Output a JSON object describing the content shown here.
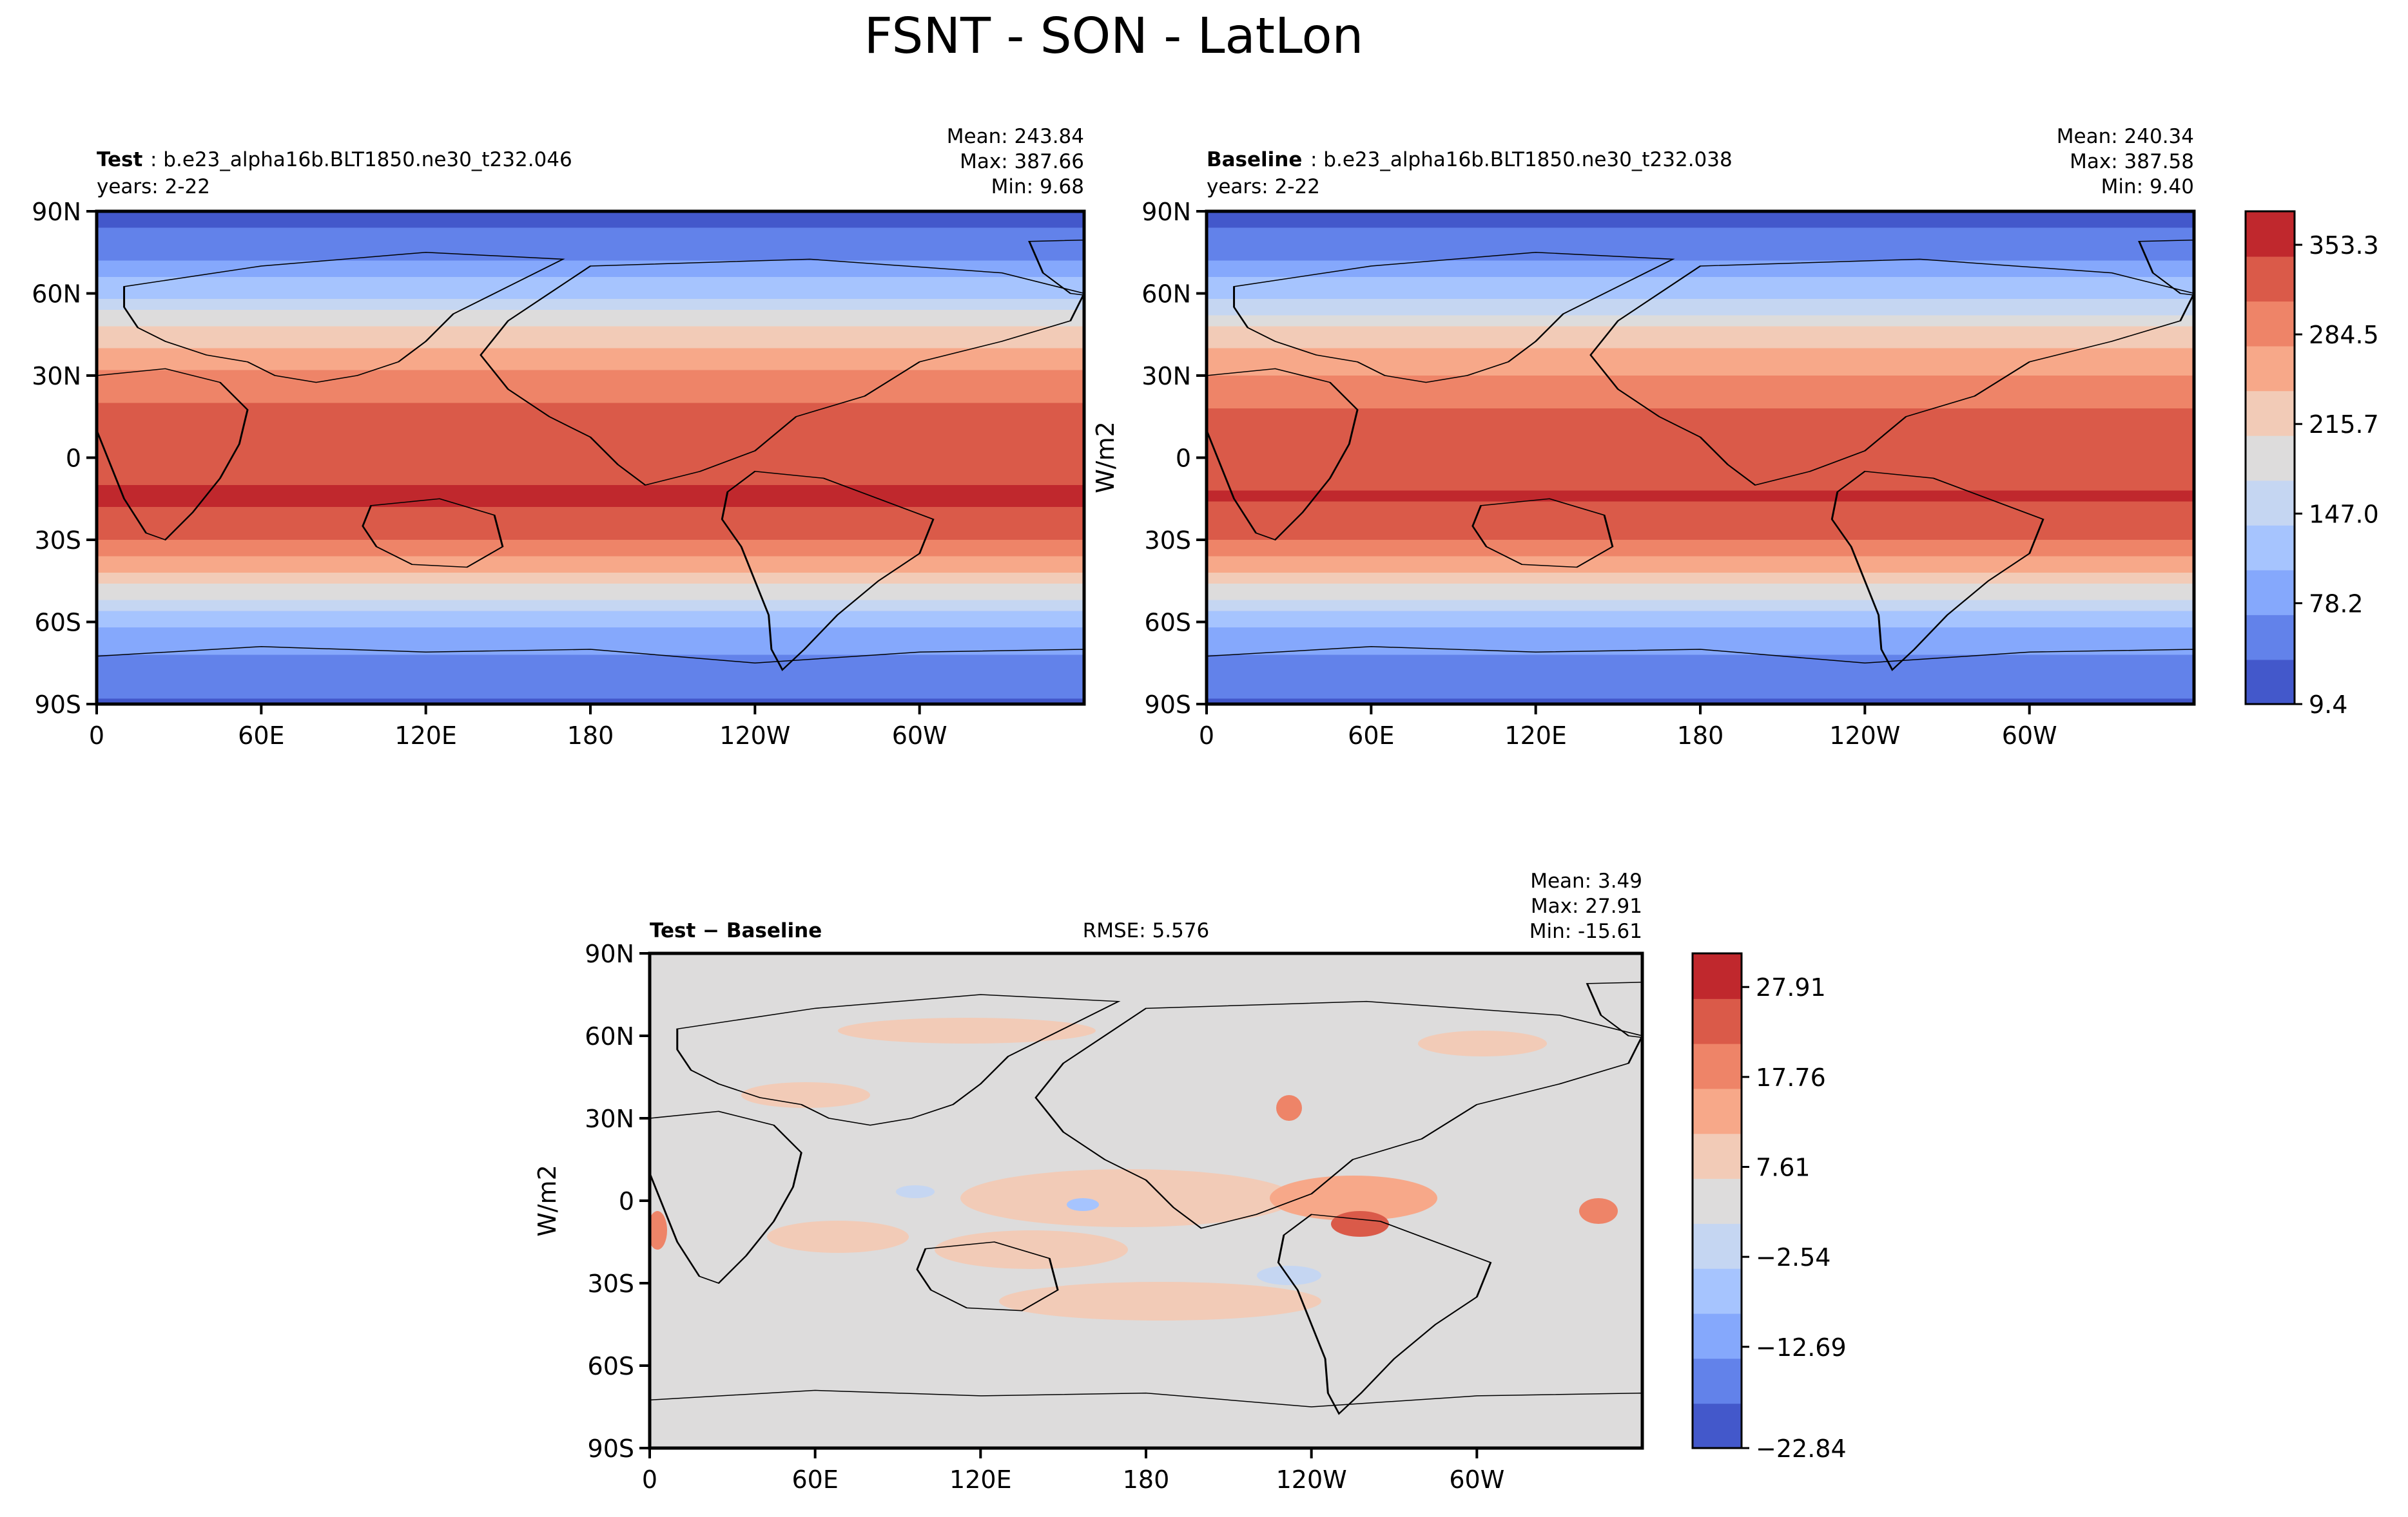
{
  "suptitle": "FSNT - SON - LatLon",
  "colors": {
    "abs_levels": [
      "#4358cb",
      "#6282ea",
      "#85a8fc",
      "#a6c4fe",
      "#c5d6f2",
      "#dddcdc",
      "#f2cbb7",
      "#f7a889",
      "#ee8468",
      "#da5a49",
      "#c0282d"
    ],
    "diff_levels": [
      "#4358cb",
      "#6282ea",
      "#85a8fc",
      "#a6c4fe",
      "#c5d6f2",
      "#dddcdc",
      "#f2cbb7",
      "#f7a889",
      "#ee8468",
      "#da5a49",
      "#c0282d"
    ],
    "coast": "#000000"
  },
  "panels": {
    "test": {
      "label_bold": "Test",
      "label_rest": ": b.e23_alpha16b.BLT1850.ne30_t232.046",
      "years": "years: 2-22",
      "mean": "Mean: 243.84",
      "max": "Max: 387.66",
      "min": "Min:  9.68",
      "xticks": [
        "0",
        "60E",
        "120E",
        "180",
        "120W",
        "60W"
      ],
      "yticks": [
        "90N",
        "60N",
        "30N",
        "0",
        "30S",
        "60S",
        "90S"
      ]
    },
    "baseline": {
      "label_bold": "Baseline",
      "label_rest": ": b.e23_alpha16b.BLT1850.ne30_t232.038",
      "years": "years: 2-22",
      "mean": "Mean: 240.34",
      "max": "Max: 387.58",
      "min": "Min:  9.40",
      "ylabel": "W/m2",
      "xticks": [
        "0",
        "60E",
        "120E",
        "180",
        "120W",
        "60W"
      ],
      "yticks": [
        "90N",
        "60N",
        "30N",
        "0",
        "30S",
        "60S",
        "90S"
      ]
    },
    "diff": {
      "label": "Test − Baseline",
      "rmse": "RMSE: 5.576",
      "mean": "Mean:  3.49",
      "max": "Max: 27.91",
      "min": "Min: -15.61",
      "ylabel": "W/m2",
      "xticks": [
        "0",
        "60E",
        "120E",
        "180",
        "120W",
        "60W"
      ],
      "yticks": [
        "90N",
        "60N",
        "30N",
        "0",
        "30S",
        "60S",
        "90S"
      ]
    }
  },
  "colorbars": {
    "abs": {
      "labels": [
        "353.3",
        "284.5",
        "215.7",
        "147.0",
        "78.2",
        "9.4"
      ]
    },
    "diff": {
      "labels": [
        "27.91",
        "17.76",
        "7.61",
        "−2.54",
        "−12.69",
        "−22.84"
      ]
    }
  },
  "chart_data": [
    {
      "type": "heatmap",
      "title": "Test : b.e23_alpha16b.BLT1850.ne30_t232.046",
      "x_ticks": [
        "0",
        "60E",
        "120E",
        "180",
        "120W",
        "60W"
      ],
      "y_ticks": [
        "90N",
        "60N",
        "30N",
        "0",
        "30S",
        "60S",
        "90S"
      ],
      "xlim": [
        0,
        360
      ],
      "ylim": [
        -90,
        90
      ],
      "zonal_profile": {
        "lat": [
          90,
          75,
          60,
          45,
          30,
          15,
          0,
          -15,
          -30,
          -45,
          -60,
          -75,
          -90
        ],
        "value": [
          30,
          60,
          140,
          230,
          290,
          330,
          340,
          360,
          320,
          230,
          120,
          70,
          40
        ]
      },
      "stats": {
        "mean": 243.84,
        "max": 387.66,
        "min": 9.68
      },
      "units": "W/m2"
    },
    {
      "type": "heatmap",
      "title": "Baseline : b.e23_alpha16b.BLT1850.ne30_t232.038",
      "x_ticks": [
        "0",
        "60E",
        "120E",
        "180",
        "120W",
        "60W"
      ],
      "y_ticks": [
        "90N",
        "60N",
        "30N",
        "0",
        "30S",
        "60S",
        "90S"
      ],
      "xlim": [
        0,
        360
      ],
      "ylim": [
        -90,
        90
      ],
      "zonal_profile": {
        "lat": [
          90,
          75,
          60,
          45,
          30,
          15,
          0,
          -15,
          -30,
          -45,
          -60,
          -75,
          -90
        ],
        "value": [
          30,
          60,
          140,
          228,
          288,
          328,
          338,
          358,
          318,
          228,
          118,
          68,
          40
        ]
      },
      "stats": {
        "mean": 240.34,
        "max": 387.58,
        "min": 9.4
      },
      "units": "W/m2",
      "colorbar_ticks": [
        9.4,
        78.2,
        147.0,
        215.7,
        284.5,
        353.3
      ]
    },
    {
      "type": "heatmap",
      "title": "Test − Baseline",
      "x_ticks": [
        "0",
        "60E",
        "120E",
        "180",
        "120W",
        "60W"
      ],
      "y_ticks": [
        "90N",
        "60N",
        "30N",
        "0",
        "30S",
        "60S",
        "90S"
      ],
      "xlim": [
        0,
        360
      ],
      "ylim": [
        -90,
        90
      ],
      "stats": {
        "mean": 3.49,
        "max": 27.91,
        "min": -15.61,
        "rmse": 5.576
      },
      "units": "W/m2",
      "colorbar_ticks": [
        -22.84,
        -12.69,
        -2.54,
        7.61,
        17.76,
        27.91
      ]
    }
  ]
}
